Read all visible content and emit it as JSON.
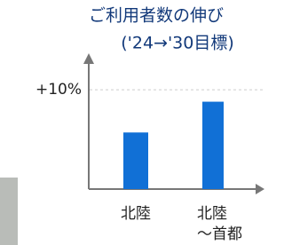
{
  "chart_data": {
    "type": "bar",
    "title": "ご利用者数の伸び",
    "subtitle": "('24→'30目標)",
    "categories": [
      "北陸",
      "北陸\n～首都"
    ],
    "values": [
      5.7,
      8.8
    ],
    "color": "#1170d6",
    "ylim": [
      0,
      13.5
    ],
    "yticks": [
      {
        "value": 10,
        "label": "+10%"
      }
    ],
    "grid": true
  }
}
